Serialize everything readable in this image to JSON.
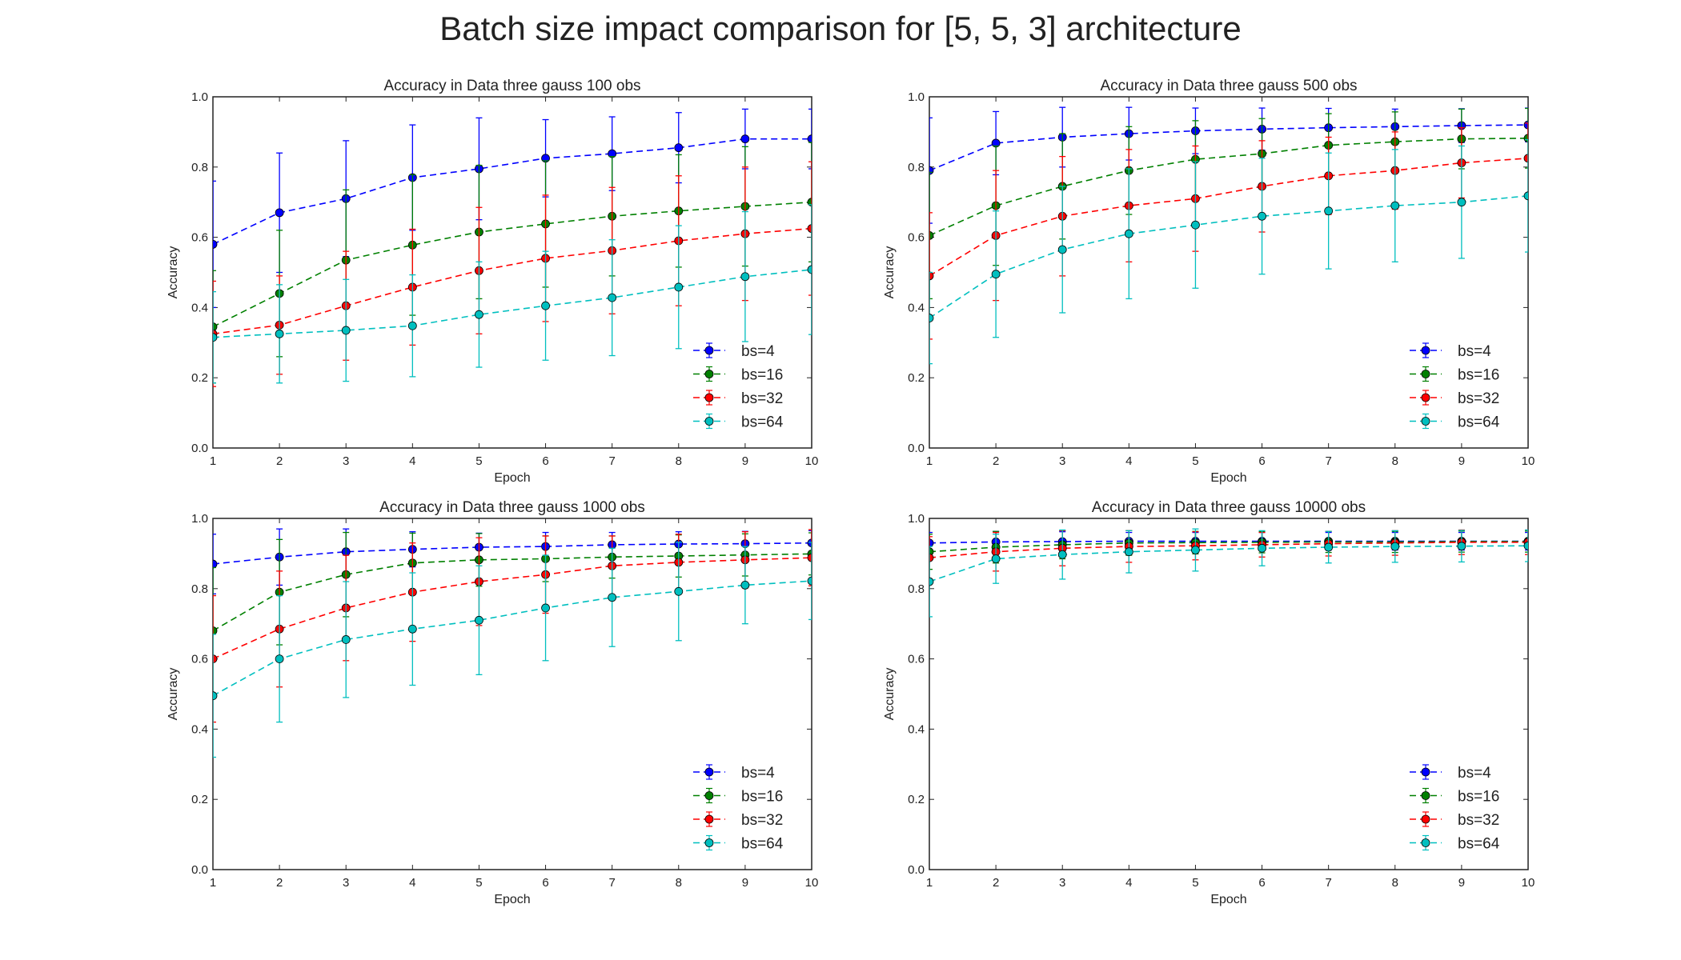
{
  "figure": {
    "title": "Batch size impact comparison for [5, 5, 3] architecture"
  },
  "colors": {
    "bs4": "#0000ff",
    "bs16": "#008000",
    "bs32": "#ff0000",
    "bs64": "#00bfbf"
  },
  "chart_data": [
    {
      "type": "line",
      "title": "Accuracy in Data three gauss 100 obs",
      "xlabel": "Epoch",
      "ylabel": "Accuracy",
      "xlim": [
        1,
        10
      ],
      "ylim": [
        0.0,
        1.0
      ],
      "xticks": [
        "1",
        "2",
        "3",
        "4",
        "5",
        "6",
        "7",
        "8",
        "9",
        "10"
      ],
      "yticks": [
        "0.0",
        "0.2",
        "0.4",
        "0.6",
        "0.8",
        "1.0"
      ],
      "legend": "lower-right",
      "x": [
        1,
        2,
        3,
        4,
        5,
        6,
        7,
        8,
        9,
        10
      ],
      "series": [
        {
          "name": "bs=4",
          "values": [
            0.58,
            0.67,
            0.71,
            0.77,
            0.795,
            0.825,
            0.838,
            0.855,
            0.88,
            0.88
          ],
          "err": [
            0.18,
            0.17,
            0.165,
            0.15,
            0.145,
            0.11,
            0.105,
            0.1,
            0.085,
            0.085
          ]
        },
        {
          "name": "bs=16",
          "values": [
            0.345,
            0.44,
            0.535,
            0.578,
            0.615,
            0.638,
            0.66,
            0.675,
            0.688,
            0.7
          ],
          "err": [
            0.16,
            0.18,
            0.2,
            0.2,
            0.19,
            0.18,
            0.17,
            0.16,
            0.17,
            0.17
          ]
        },
        {
          "name": "bs=32",
          "values": [
            0.325,
            0.35,
            0.405,
            0.458,
            0.505,
            0.54,
            0.562,
            0.59,
            0.61,
            0.625
          ],
          "err": [
            0.15,
            0.14,
            0.155,
            0.165,
            0.18,
            0.18,
            0.18,
            0.185,
            0.19,
            0.19
          ]
        },
        {
          "name": "bs=64",
          "values": [
            0.315,
            0.325,
            0.335,
            0.348,
            0.38,
            0.405,
            0.428,
            0.458,
            0.488,
            0.508
          ],
          "err": [
            0.13,
            0.14,
            0.145,
            0.145,
            0.15,
            0.155,
            0.165,
            0.175,
            0.185,
            0.185
          ]
        }
      ]
    },
    {
      "type": "line",
      "title": "Accuracy in Data three gauss 500 obs",
      "xlabel": "Epoch",
      "ylabel": "Accuracy",
      "xlim": [
        1,
        10
      ],
      "ylim": [
        0.0,
        1.0
      ],
      "xticks": [
        "1",
        "2",
        "3",
        "4",
        "5",
        "6",
        "7",
        "8",
        "9",
        "10"
      ],
      "yticks": [
        "0.0",
        "0.2",
        "0.4",
        "0.6",
        "0.8",
        "1.0"
      ],
      "legend": "lower-right",
      "x": [
        1,
        2,
        3,
        4,
        5,
        6,
        7,
        8,
        9,
        10
      ],
      "series": [
        {
          "name": "bs=4",
          "values": [
            0.79,
            0.868,
            0.885,
            0.895,
            0.903,
            0.908,
            0.912,
            0.915,
            0.918,
            0.92
          ],
          "err": [
            0.15,
            0.09,
            0.085,
            0.075,
            0.065,
            0.06,
            0.055,
            0.05,
            0.048,
            0.048
          ]
        },
        {
          "name": "bs=16",
          "values": [
            0.605,
            0.69,
            0.745,
            0.79,
            0.822,
            0.838,
            0.862,
            0.872,
            0.88,
            0.882
          ],
          "err": [
            0.18,
            0.17,
            0.15,
            0.125,
            0.11,
            0.1,
            0.09,
            0.085,
            0.085,
            0.085
          ]
        },
        {
          "name": "bs=32",
          "values": [
            0.49,
            0.605,
            0.66,
            0.69,
            0.71,
            0.745,
            0.775,
            0.79,
            0.812,
            0.825
          ],
          "err": [
            0.18,
            0.185,
            0.17,
            0.16,
            0.15,
            0.13,
            0.11,
            0.11,
            0.1,
            0.1
          ]
        },
        {
          "name": "bs=64",
          "values": [
            0.37,
            0.495,
            0.565,
            0.61,
            0.635,
            0.66,
            0.675,
            0.69,
            0.7,
            0.718
          ],
          "err": [
            0.13,
            0.18,
            0.18,
            0.185,
            0.18,
            0.165,
            0.165,
            0.16,
            0.16,
            0.16
          ]
        }
      ]
    },
    {
      "type": "line",
      "title": "Accuracy in Data three gauss 1000 obs",
      "xlabel": "Epoch",
      "ylabel": "Accuracy",
      "xlim": [
        1,
        10
      ],
      "ylim": [
        0.0,
        1.0
      ],
      "xticks": [
        "1",
        "2",
        "3",
        "4",
        "5",
        "6",
        "7",
        "8",
        "9",
        "10"
      ],
      "yticks": [
        "0.0",
        "0.2",
        "0.4",
        "0.6",
        "0.8",
        "1.0"
      ],
      "legend": "lower-right",
      "x": [
        1,
        2,
        3,
        4,
        5,
        6,
        7,
        8,
        9,
        10
      ],
      "series": [
        {
          "name": "bs=4",
          "values": [
            0.87,
            0.89,
            0.905,
            0.912,
            0.918,
            0.92,
            0.925,
            0.927,
            0.928,
            0.93
          ],
          "err": [
            0.085,
            0.08,
            0.065,
            0.05,
            0.04,
            0.04,
            0.035,
            0.035,
            0.035,
            0.035
          ]
        },
        {
          "name": "bs=16",
          "values": [
            0.68,
            0.79,
            0.84,
            0.873,
            0.882,
            0.885,
            0.89,
            0.893,
            0.896,
            0.899
          ],
          "err": [
            0.18,
            0.15,
            0.12,
            0.085,
            0.075,
            0.065,
            0.06,
            0.06,
            0.06,
            0.06
          ]
        },
        {
          "name": "bs=32",
          "values": [
            0.6,
            0.685,
            0.745,
            0.79,
            0.82,
            0.84,
            0.865,
            0.875,
            0.882,
            0.888
          ],
          "err": [
            0.18,
            0.165,
            0.15,
            0.14,
            0.125,
            0.11,
            0.085,
            0.08,
            0.08,
            0.08
          ]
        },
        {
          "name": "bs=64",
          "values": [
            0.495,
            0.6,
            0.655,
            0.685,
            0.71,
            0.745,
            0.775,
            0.792,
            0.81,
            0.822
          ],
          "err": [
            0.175,
            0.18,
            0.165,
            0.16,
            0.155,
            0.15,
            0.14,
            0.14,
            0.11,
            0.11
          ]
        }
      ]
    },
    {
      "type": "line",
      "title": "Accuracy in Data three gauss 10000 obs",
      "xlabel": "Epoch",
      "ylabel": "Accuracy",
      "xlim": [
        1,
        10
      ],
      "ylim": [
        0.0,
        1.0
      ],
      "xticks": [
        "1",
        "2",
        "3",
        "4",
        "5",
        "6",
        "7",
        "8",
        "9",
        "10"
      ],
      "yticks": [
        "0.0",
        "0.2",
        "0.4",
        "0.6",
        "0.8",
        "1.0"
      ],
      "legend": "lower-right",
      "x": [
        1,
        2,
        3,
        4,
        5,
        6,
        7,
        8,
        9,
        10
      ],
      "series": [
        {
          "name": "bs=4",
          "values": [
            0.93,
            0.933,
            0.934,
            0.935,
            0.935,
            0.935,
            0.935,
            0.935,
            0.935,
            0.935
          ],
          "err": [
            0.03,
            0.03,
            0.028,
            0.025,
            0.025,
            0.025,
            0.025,
            0.025,
            0.025,
            0.025
          ]
        },
        {
          "name": "bs=16",
          "values": [
            0.905,
            0.918,
            0.925,
            0.93,
            0.931,
            0.932,
            0.933,
            0.933,
            0.934,
            0.934
          ],
          "err": [
            0.05,
            0.045,
            0.04,
            0.035,
            0.032,
            0.03,
            0.03,
            0.03,
            0.03,
            0.03
          ]
        },
        {
          "name": "bs=32",
          "values": [
            0.888,
            0.905,
            0.915,
            0.92,
            0.922,
            0.925,
            0.928,
            0.93,
            0.932,
            0.932
          ],
          "err": [
            0.06,
            0.055,
            0.05,
            0.045,
            0.04,
            0.035,
            0.035,
            0.035,
            0.035,
            0.035
          ]
        },
        {
          "name": "bs=64",
          "values": [
            0.82,
            0.885,
            0.897,
            0.905,
            0.91,
            0.915,
            0.918,
            0.92,
            0.921,
            0.922
          ],
          "err": [
            0.1,
            0.07,
            0.07,
            0.06,
            0.06,
            0.05,
            0.045,
            0.045,
            0.045,
            0.045
          ]
        }
      ]
    }
  ]
}
